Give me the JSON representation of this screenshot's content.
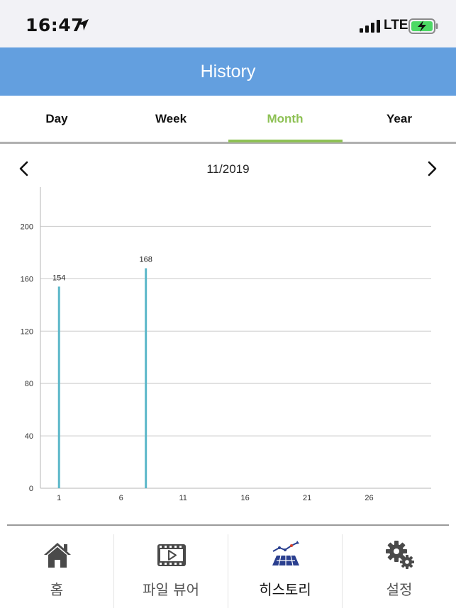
{
  "status_bar": {
    "time": "16:47",
    "network": "LTE",
    "icons": [
      "location-arrow-icon",
      "signal-bars-icon",
      "battery-charging-icon"
    ]
  },
  "header": {
    "title": "History",
    "color": "#639fdf"
  },
  "tabs": [
    {
      "label": "Day",
      "active": false
    },
    {
      "label": "Week",
      "active": false
    },
    {
      "label": "Month",
      "active": true
    },
    {
      "label": "Year",
      "active": false
    }
  ],
  "accent_color": "#8ec155",
  "period": {
    "label": "11/2019",
    "prev_icon": "chevron-left-icon",
    "next_icon": "chevron-right-icon"
  },
  "chart_data": {
    "type": "bar",
    "x": [
      1,
      8
    ],
    "values": [
      154,
      168
    ],
    "data_labels": [
      "154",
      "168"
    ],
    "x_range": [
      -0.5,
      31
    ],
    "x_ticks": [
      1,
      6,
      11,
      16,
      21,
      26
    ],
    "y_range": [
      0,
      230
    ],
    "y_ticks": [
      0,
      40,
      80,
      120,
      160,
      200
    ],
    "grid": true,
    "bar_color": "#5bb7c9"
  },
  "bottom_nav": [
    {
      "label": "홈",
      "icon": "home-icon",
      "active": false
    },
    {
      "label": "파일 뷰어",
      "icon": "video-player-icon",
      "active": false
    },
    {
      "label": "히스토리",
      "icon": "solar-panel-chart-icon",
      "active": true
    },
    {
      "label": "설정",
      "icon": "gears-icon",
      "active": false
    }
  ]
}
